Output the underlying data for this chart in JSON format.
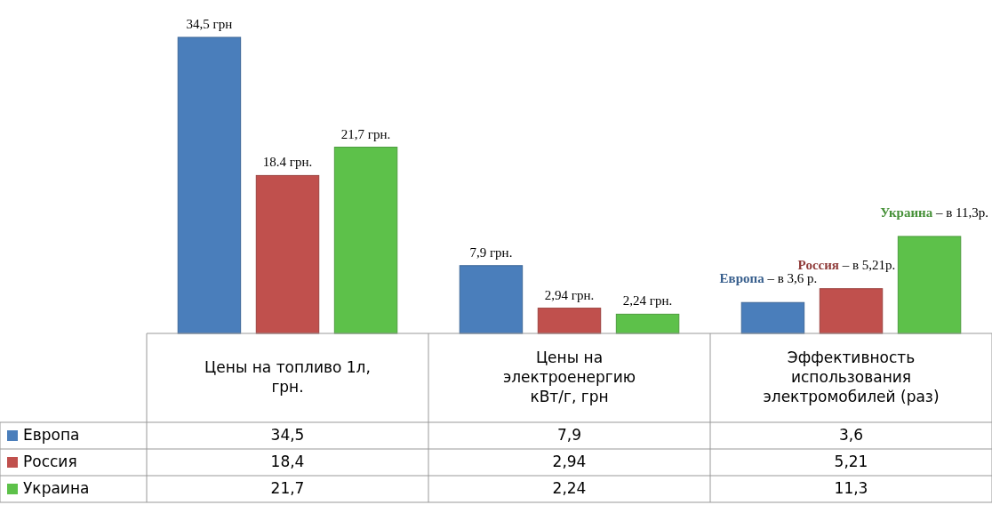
{
  "chart_data": {
    "type": "bar",
    "categories": [
      "Цены на топливо 1л,\nгрн.",
      "Цены на\nэлектроенергию\nкВт/г, грн",
      "Эффективность\nиспользования\nэлектромобилей (раз)"
    ],
    "series": [
      {
        "name": "Европа",
        "color": "#4a7ebb",
        "values": [
          34.5,
          7.9,
          3.6
        ],
        "value_labels": [
          "34,5 грн",
          "7,9 грн.",
          "Европа – в 3,6 р."
        ]
      },
      {
        "name": "Россия",
        "color": "#c0504d",
        "values": [
          18.4,
          2.94,
          5.21
        ],
        "value_labels": [
          "18.4 грн.",
          "2,94 грн.",
          "Россия – в 5,21р."
        ]
      },
      {
        "name": "Украина",
        "color": "#5dc14a",
        "values": [
          21.7,
          2.24,
          11.3
        ],
        "value_labels": [
          "21,7 грн.",
          "2,24 грн.",
          "Украина – в 11,3р."
        ]
      }
    ],
    "annotations": [
      "34,5",
      "7,9",
      "3,6",
      "18,4",
      "2,94",
      "5,21",
      "21,7",
      "2,24",
      "11,3"
    ],
    "data_labels": true,
    "legend": "bottom left"
  }
}
